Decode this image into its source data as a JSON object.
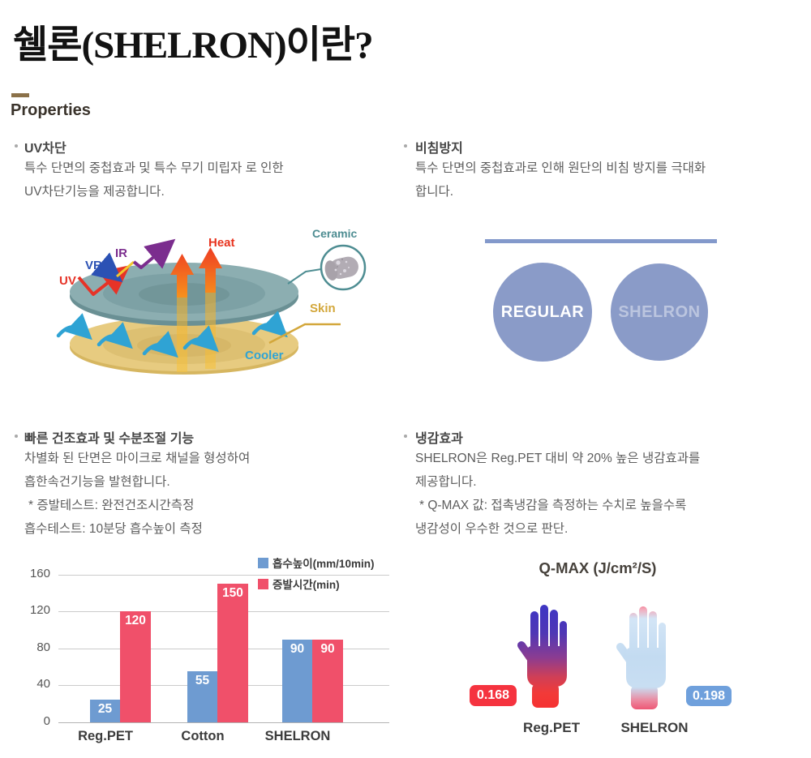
{
  "page": {
    "title": "쉘론(SHELRON)이란?",
    "properties_label": "Properties"
  },
  "sections": {
    "uv": {
      "heading": "UV차단",
      "lines": [
        "특수 단면의 중첩효과 및 특수 무기 미립자 로 인한",
        "UV차단기능을 제공합니다."
      ]
    },
    "sheer": {
      "heading": "비침방지",
      "lines": [
        "특수 단면의 중첩효과로 인해 원단의 비침 방지를 극대화",
        "합니다."
      ]
    },
    "dry": {
      "heading": "빠른 건조효과 및 수분조절 기능",
      "lines": [
        "차별화 된 단면은 마이크로 채널을 형성하여",
        "흡한속건기능을 발현합니다.",
        "* 증발테스트: 완전건조시간측정",
        "흡수테스트: 10분당 흡수높이 측정"
      ]
    },
    "cool": {
      "heading": "냉감효과",
      "lines": [
        "SHELRON은 Reg.PET 대비 약 20% 높은 냉감효과를",
        "제공합니다.",
        "* Q-MAX 값: 접촉냉감을 측정하는 수치로 높을수록",
        "냉감성이 우수한 것으로 판단."
      ]
    }
  },
  "uv_diagram": {
    "labels": {
      "uv": "UV",
      "vr": "VR",
      "ir": "IR",
      "heat": "Heat",
      "ceramic": "Ceramic",
      "skin": "Skin",
      "cooler": "Cooler"
    },
    "colors": {
      "uv": "#e63327",
      "vr": "#2b51b4",
      "ir": "#7b2d8e",
      "heat": "#e8341f",
      "ceramic": "#4e8d92",
      "skin": "#d3a73b",
      "cooler": "#2fa3d4",
      "fabric_disc": "#8caeb1",
      "skin_disc": "#e7cb80"
    }
  },
  "sheer_visual": {
    "divider_color": "#8399cb",
    "circle_color": "#8a9bc8",
    "left_label": "REGULAR",
    "right_label": "SHELRON"
  },
  "chart_data": {
    "type": "bar",
    "categories": [
      "Reg.PET",
      "Cotton",
      "SHELRON"
    ],
    "series": [
      {
        "name": "흡수높이(mm/10min)",
        "color": "#6e9bd1",
        "values": [
          25,
          55,
          90
        ]
      },
      {
        "name": "증발시간(min)",
        "color": "#f0506a",
        "values": [
          120,
          150,
          90
        ]
      }
    ],
    "yticks": [
      0,
      40,
      80,
      120,
      160
    ],
    "ylim": [
      0,
      160
    ],
    "grid": true,
    "legend_position": "top-right",
    "value_labels": true
  },
  "qmax": {
    "title": "Q-MAX (J/cm²/S)",
    "items": [
      {
        "label": "Reg.PET",
        "value": "0.168",
        "badge_color": "#f5333f"
      },
      {
        "label": "SHELRON",
        "value": "0.198",
        "badge_color": "#6fa0dc"
      }
    ]
  }
}
